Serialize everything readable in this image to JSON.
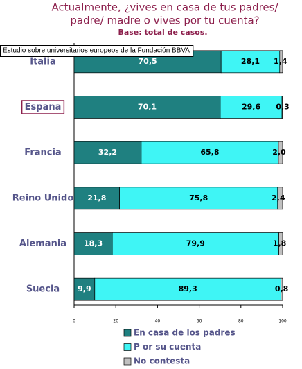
{
  "chart_data": {
    "type": "stacked-barh",
    "title": [
      "Actualmente, ¿vives en casa de tus padres/",
      "padre/ madre o vives por tu cuenta?"
    ],
    "subtitle": "Base: total de casos.",
    "tooltip": "Estudio sobre universitarios europeos de la Fundación BBVA",
    "categories": [
      "Italia",
      "España",
      "Francia",
      "Reino Unido",
      "Alemania",
      "Suecia"
    ],
    "highlight_category": 1,
    "series": [
      {
        "name": "En casa de los padres",
        "color": "#1f8080",
        "label_color": "#ffffff",
        "values": [
          70.5,
          70.1,
          32.2,
          21.8,
          18.3,
          9.9
        ],
        "value_labels": [
          "70,5",
          "70,1",
          "32,2",
          "21,8",
          "18,3",
          "9,9"
        ]
      },
      {
        "name": "P or su cuenta",
        "color": "#3ff5f5",
        "label_color": "#000000",
        "values": [
          28.1,
          29.6,
          65.8,
          75.8,
          79.9,
          89.3
        ],
        "value_labels": [
          "28,1",
          "29,6",
          "65,8",
          "75,8",
          "79,9",
          "89,3"
        ]
      },
      {
        "name": "No contesta",
        "color": "#c0c0c0",
        "label_color": "#000000",
        "values": [
          1.4,
          0.3,
          2.0,
          2.4,
          1.8,
          0.8
        ],
        "value_labels": [
          "1,4",
          "0,3",
          "2,0",
          "2,4",
          "1,8",
          "0,8"
        ]
      }
    ],
    "xlim": [
      0,
      100
    ],
    "xticks": [
      0,
      20,
      40,
      60,
      80,
      100
    ]
  }
}
